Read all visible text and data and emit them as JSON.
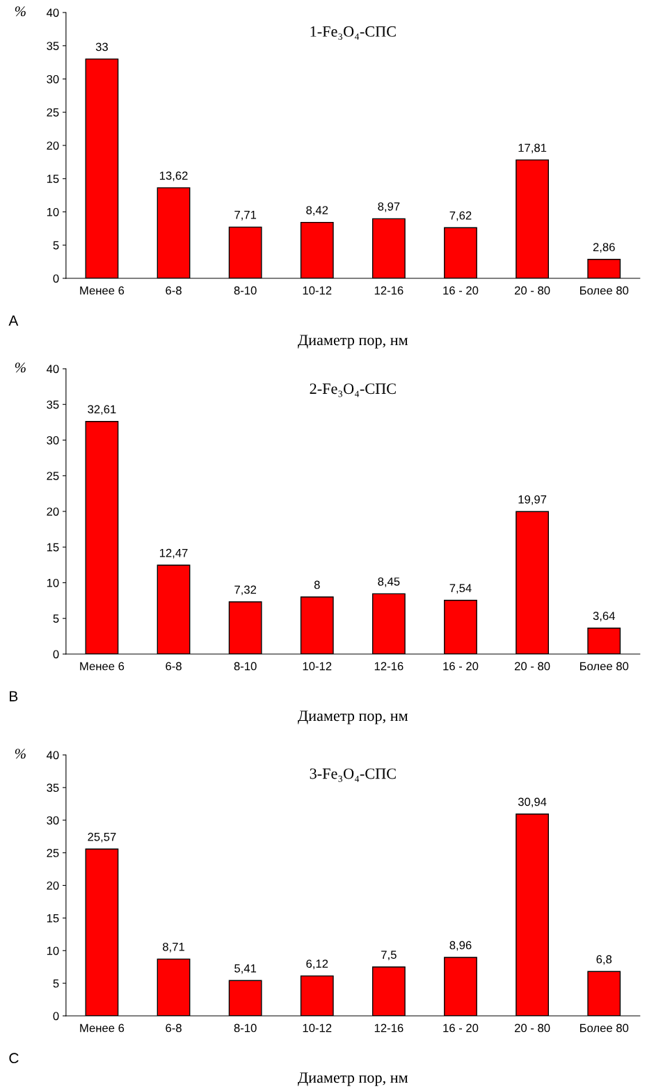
{
  "chart_data": [
    {
      "type": "bar",
      "title": "1-Fe₃O₄-СПС",
      "xlabel": "Диаметр пор, нм",
      "ylabel": "%",
      "annotations": [
        "A"
      ],
      "categories": [
        "Менее 6",
        "6-8",
        "8-10",
        "10-12",
        "12-16",
        "16 - 20",
        "20 - 80",
        "Более 80"
      ],
      "values": [
        33,
        13.62,
        7.71,
        8.42,
        8.97,
        7.62,
        17.81,
        2.86
      ],
      "value_labels": [
        "33",
        "13,62",
        "7,71",
        "8,42",
        "8,97",
        "7,62",
        "17,81",
        "2,86"
      ],
      "color": "#ff0000",
      "ylim": [
        0,
        40
      ],
      "yticks": [
        0,
        5,
        10,
        15,
        20,
        25,
        30,
        35,
        40
      ],
      "grid": false,
      "legend": false
    },
    {
      "type": "bar",
      "title": "2-Fe₃O₄-СПС",
      "xlabel": "Диаметр пор, нм",
      "ylabel": "%",
      "annotations": [
        "B"
      ],
      "categories": [
        "Менее 6",
        "6-8",
        "8-10",
        "10-12",
        "12-16",
        "16 - 20",
        "20 - 80",
        "Более 80"
      ],
      "values": [
        32.61,
        12.47,
        7.32,
        8,
        8.45,
        7.54,
        19.97,
        3.64
      ],
      "value_labels": [
        "32,61",
        "12,47",
        "7,32",
        "8",
        "8,45",
        "7,54",
        "19,97",
        "3,64"
      ],
      "color": "#ff0000",
      "ylim": [
        0,
        40
      ],
      "yticks": [
        0,
        5,
        10,
        15,
        20,
        25,
        30,
        35,
        40
      ],
      "grid": false,
      "legend": false
    },
    {
      "type": "bar",
      "title": "3-Fe₃O₄-СПС",
      "xlabel": "Диаметр пор, нм",
      "ylabel": "%",
      "annotations": [
        "C"
      ],
      "categories": [
        "Менее 6",
        "6-8",
        "8-10",
        "10-12",
        "12-16",
        "16 - 20",
        "20 - 80",
        "Более 80"
      ],
      "values": [
        25.57,
        8.71,
        5.41,
        6.12,
        7.5,
        8.96,
        30.94,
        6.8
      ],
      "value_labels": [
        "25,57",
        "8,71",
        "5,41",
        "6,12",
        "7,5",
        "8,96",
        "30,94",
        "6,8"
      ],
      "color": "#ff0000",
      "ylim": [
        0,
        40
      ],
      "yticks": [
        0,
        5,
        10,
        15,
        20,
        25,
        30,
        35,
        40
      ],
      "grid": false,
      "legend": false
    }
  ]
}
